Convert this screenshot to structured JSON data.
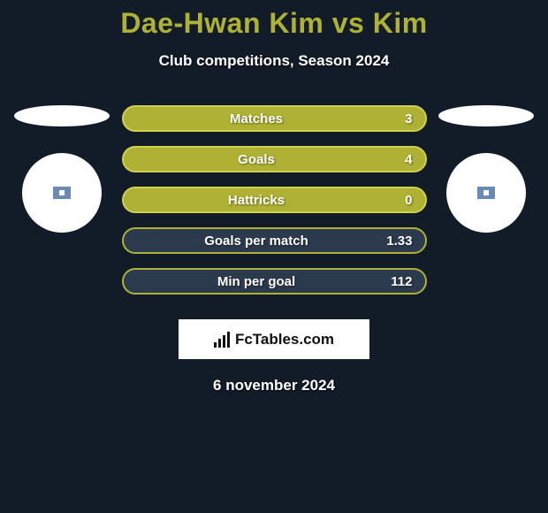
{
  "title": {
    "text": "Dae-Hwan Kim vs Kim",
    "color": "#aeb133"
  },
  "subtitle": "Club competitions, Season 2024",
  "background_color": "#121b28",
  "left_player": {
    "badge_border_color": "#6a8bb5"
  },
  "right_player": {
    "badge_border_color": "#6a8bb5"
  },
  "stats": [
    {
      "label": "Matches",
      "value": "3",
      "bg": "#aeb133",
      "border": "#cfd14f"
    },
    {
      "label": "Goals",
      "value": "4",
      "bg": "#aeb133",
      "border": "#cfd14f"
    },
    {
      "label": "Hattricks",
      "value": "0",
      "bg": "#aeb133",
      "border": "#cfd14f"
    },
    {
      "label": "Goals per match",
      "value": "1.33",
      "bg": "#2c3a4d",
      "border": "#aeb133"
    },
    {
      "label": "Min per goal",
      "value": "112",
      "bg": "#2c3a4d",
      "border": "#aeb133"
    }
  ],
  "logo_text": "FcTables.com",
  "footer_date": "6 november 2024"
}
